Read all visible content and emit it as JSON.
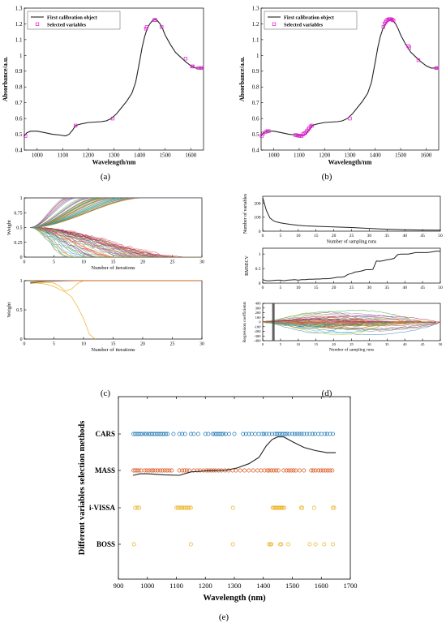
{
  "captions": {
    "a": "(a)",
    "b": "(b)",
    "c": "(c)",
    "d": "(d)",
    "e": "(e)"
  },
  "chart_data": [
    {
      "id": "a",
      "type": "line",
      "xlabel": "Wavelength/nm",
      "ylabel": "Absorbance/a.u.",
      "xlim": [
        950,
        1650
      ],
      "ylim": [
        0.4,
        1.3
      ],
      "xticks": [
        1000,
        1100,
        1200,
        1300,
        1400,
        1500,
        1600
      ],
      "yticks": [
        0.4,
        0.5,
        0.6,
        0.7,
        0.8,
        0.9,
        1.0,
        1.1,
        1.2,
        1.3
      ],
      "ytick_labels": [
        "0.4",
        "0.5",
        "0.6",
        "0.7",
        "0.8",
        "0.9",
        "1",
        "1.1",
        "1.2",
        "1.3"
      ],
      "legend": [
        "First calibration object",
        "Selected variables"
      ],
      "legend_position": "top-left",
      "series": [
        {
          "name": "First calibration object",
          "x": [
            950,
            960,
            975,
            1000,
            1030,
            1060,
            1090,
            1110,
            1125,
            1140,
            1150,
            1170,
            1200,
            1250,
            1270,
            1290,
            1310,
            1330,
            1350,
            1370,
            1385,
            1400,
            1410,
            1420,
            1430,
            1440,
            1450,
            1460,
            1470,
            1480,
            1490,
            1500,
            1520,
            1540,
            1560,
            1580,
            1600,
            1620,
            1640,
            1650
          ],
          "y": [
            0.49,
            0.51,
            0.52,
            0.52,
            0.51,
            0.5,
            0.495,
            0.49,
            0.5,
            0.53,
            0.555,
            0.565,
            0.575,
            0.58,
            0.585,
            0.6,
            0.63,
            0.67,
            0.71,
            0.76,
            0.83,
            0.96,
            1.05,
            1.12,
            1.17,
            1.2,
            1.22,
            1.23,
            1.22,
            1.2,
            1.17,
            1.13,
            1.07,
            1.02,
            0.99,
            0.96,
            0.935,
            0.92,
            0.92,
            0.92
          ]
        },
        {
          "name": "Selected variables",
          "x": [
            954,
            1150,
            1295,
            1425,
            1428,
            1458,
            1462,
            1486,
            1580,
            1605,
            1608,
            1630,
            1640,
            1645
          ],
          "y": [
            0.49,
            0.555,
            0.6,
            1.17,
            1.18,
            1.225,
            1.225,
            1.18,
            0.98,
            0.93,
            0.93,
            0.92,
            0.92,
            0.92
          ]
        }
      ]
    },
    {
      "id": "b",
      "type": "line",
      "xlabel": "Wavelength/nm",
      "ylabel": "Absorbance/a.u.",
      "xlim": [
        950,
        1650
      ],
      "ylim": [
        0.4,
        1.3
      ],
      "xticks": [
        1000,
        1100,
        1200,
        1300,
        1400,
        1500,
        1600
      ],
      "yticks": [
        0.4,
        0.5,
        0.6,
        0.7,
        0.8,
        0.9,
        1.0,
        1.1,
        1.2,
        1.3
      ],
      "ytick_labels": [
        "0.4",
        "0.5",
        "0.6",
        "0.7",
        "0.8",
        "0.9",
        "1",
        "1.1",
        "1.2",
        "1.3"
      ],
      "legend": [
        "First calibration object",
        "Selected variables"
      ],
      "legend_position": "top-left",
      "series": [
        {
          "name": "First calibration object",
          "x": [
            950,
            960,
            975,
            1000,
            1030,
            1060,
            1090,
            1110,
            1125,
            1140,
            1150,
            1170,
            1200,
            1250,
            1270,
            1290,
            1310,
            1330,
            1350,
            1370,
            1385,
            1400,
            1410,
            1420,
            1430,
            1440,
            1450,
            1460,
            1470,
            1480,
            1490,
            1500,
            1520,
            1540,
            1560,
            1580,
            1600,
            1620,
            1640,
            1650
          ],
          "y": [
            0.49,
            0.51,
            0.52,
            0.52,
            0.51,
            0.5,
            0.495,
            0.49,
            0.5,
            0.53,
            0.555,
            0.565,
            0.575,
            0.58,
            0.585,
            0.6,
            0.63,
            0.67,
            0.71,
            0.76,
            0.83,
            0.96,
            1.05,
            1.12,
            1.17,
            1.2,
            1.22,
            1.23,
            1.22,
            1.2,
            1.17,
            1.13,
            1.07,
            1.02,
            0.99,
            0.96,
            0.935,
            0.92,
            0.92,
            0.92
          ]
        },
        {
          "name": "Selected variables",
          "x": [
            952,
            958,
            968,
            975,
            980,
            1085,
            1090,
            1095,
            1100,
            1105,
            1110,
            1115,
            1120,
            1125,
            1130,
            1135,
            1140,
            1145,
            1150,
            1300,
            1432,
            1436,
            1440,
            1444,
            1448,
            1452,
            1456,
            1460,
            1464,
            1468,
            1472,
            1530,
            1534,
            1570,
            1640,
            1644
          ],
          "y": [
            0.49,
            0.505,
            0.515,
            0.52,
            0.52,
            0.495,
            0.494,
            0.492,
            0.49,
            0.49,
            0.49,
            0.5,
            0.505,
            0.51,
            0.52,
            0.53,
            0.54,
            0.55,
            0.555,
            0.6,
            1.18,
            1.2,
            1.21,
            1.22,
            1.225,
            1.228,
            1.23,
            1.23,
            1.228,
            1.225,
            1.222,
            1.06,
            1.05,
            0.97,
            0.92,
            0.92
          ]
        }
      ]
    },
    {
      "id": "c-top",
      "type": "line",
      "description_series": "many variable weight trajectories",
      "xlabel": "Number of iterations",
      "ylabel": "Weight",
      "xlim": [
        0,
        30
      ],
      "ylim": [
        0,
        1
      ],
      "xticks": [
        0,
        5,
        10,
        15,
        20,
        25,
        30
      ],
      "yticks": [
        0,
        0.25,
        0.5,
        0.75,
        1
      ],
      "ytick_labels": [
        "0",
        "0.25",
        "0.5",
        "0.75",
        "1"
      ],
      "start_value": 0.5,
      "trajectory_count": 120,
      "palette": [
        "#1f77b4",
        "#ff7f0e",
        "#2ca02c",
        "#d62728",
        "#9467bd",
        "#8c564b",
        "#e377c2",
        "#7f7f7f",
        "#bcbd22",
        "#17becf",
        "#edb120",
        "#4dbeee",
        "#a2142f",
        "#77ac30",
        "#7e2f8e"
      ]
    },
    {
      "id": "c-bottom",
      "type": "line",
      "xlabel": "Number of iterations",
      "ylabel": "Weight",
      "xlim": [
        0,
        30
      ],
      "ylim": [
        0,
        1
      ],
      "xticks": [
        0,
        5,
        10,
        15,
        20,
        25,
        30
      ],
      "yticks": [
        0,
        0.5,
        1
      ],
      "ytick_labels": [
        "0",
        "0.5",
        "1"
      ],
      "series": [
        {
          "name": "",
          "color": "#edb120",
          "x": [
            1,
            2,
            3,
            4,
            5,
            6,
            7,
            8,
            9,
            10,
            11,
            12
          ],
          "y": [
            0.95,
            0.96,
            0.95,
            0.93,
            0.9,
            0.85,
            0.8,
            0.72,
            0.55,
            0.35,
            0.08,
            0.0
          ]
        },
        {
          "name": "",
          "color": "#edb120",
          "x": [
            1,
            3,
            5,
            6,
            7,
            8,
            9,
            10,
            30
          ],
          "y": [
            0.95,
            0.97,
            0.96,
            0.9,
            0.82,
            0.86,
            0.95,
            1.0,
            1.0
          ]
        },
        {
          "name": "",
          "color": "#4dbeee",
          "x": [
            1,
            3,
            6,
            9,
            11,
            30
          ],
          "y": [
            0.97,
            0.98,
            0.99,
            1.0,
            1.0,
            1.0
          ]
        },
        {
          "name": "",
          "color": "#7e2f8e",
          "x": [
            1,
            4,
            8,
            10,
            30
          ],
          "y": [
            0.96,
            0.99,
            1.0,
            1.0,
            1.0
          ]
        },
        {
          "name": "",
          "color": "#77ac30",
          "x": [
            1,
            5,
            9,
            30
          ],
          "y": [
            0.98,
            1.0,
            1.0,
            1.0
          ]
        },
        {
          "name": "",
          "color": "#d95319",
          "x": [
            1,
            30
          ],
          "y": [
            1.0,
            1.0
          ]
        }
      ]
    },
    {
      "id": "d-top",
      "type": "line",
      "xlabel": "Number of sampling runs",
      "ylabel": "Number of variables",
      "xlim": [
        0,
        50
      ],
      "ylim": [
        0,
        250
      ],
      "xticks": [
        0,
        5,
        10,
        15,
        20,
        25,
        30,
        35,
        40,
        45,
        50
      ],
      "yticks": [
        0,
        100,
        200
      ],
      "series": [
        {
          "name": "",
          "x": [
            0,
            1,
            2,
            3,
            4,
            5,
            6,
            8,
            10,
            12,
            15,
            20,
            25,
            30,
            35,
            40,
            45,
            50
          ],
          "y": [
            240,
            150,
            95,
            75,
            65,
            60,
            55,
            48,
            42,
            38,
            35,
            31,
            26,
            20,
            14,
            10,
            8,
            7
          ]
        }
      ]
    },
    {
      "id": "d-mid",
      "type": "line",
      "xlabel": "",
      "ylabel": "RMSECV",
      "xlim": [
        0,
        50
      ],
      "ylim": [
        0,
        1.2
      ],
      "xticks": [
        0,
        5,
        10,
        15,
        20,
        25,
        30,
        35,
        40,
        45,
        50
      ],
      "yticks": [
        0,
        0.5,
        1
      ],
      "series": [
        {
          "name": "",
          "x": [
            0,
            1,
            2,
            3,
            4,
            5,
            6,
            7,
            8,
            9,
            10,
            11,
            12,
            13,
            14,
            15,
            16,
            17,
            18,
            19,
            20,
            21,
            22,
            23,
            24,
            25,
            26,
            27,
            28,
            29,
            30,
            31,
            32,
            33,
            34,
            35,
            36,
            37,
            38,
            39,
            40,
            41,
            42,
            43,
            44,
            45,
            46,
            47,
            48,
            49,
            50
          ],
          "y": [
            0.12,
            0.08,
            0.08,
            0.09,
            0.1,
            0.1,
            0.08,
            0.1,
            0.11,
            0.12,
            0.1,
            0.12,
            0.12,
            0.13,
            0.13,
            0.14,
            0.14,
            0.15,
            0.15,
            0.16,
            0.18,
            0.2,
            0.2,
            0.22,
            0.3,
            0.33,
            0.38,
            0.4,
            0.42,
            0.46,
            0.46,
            0.47,
            0.76,
            0.75,
            0.77,
            0.8,
            0.82,
            0.85,
            0.98,
            1.0,
            1.0,
            1.0,
            1.02,
            1.05,
            1.05,
            1.05,
            1.05,
            1.06,
            1.08,
            1.1,
            1.1
          ]
        }
      ]
    },
    {
      "id": "d-bottom",
      "type": "line",
      "description_series": "many regression coefficient paths",
      "xlabel": "Number of sampling runs",
      "ylabel": "Regression coefficients",
      "xlim": [
        0,
        50
      ],
      "ylim": [
        -400,
        400
      ],
      "xticks": [
        0,
        5,
        10,
        15,
        20,
        25,
        30,
        35,
        40,
        45,
        50
      ],
      "yticks": [
        -400,
        -300,
        -200,
        -100,
        0,
        100,
        200,
        300,
        400
      ],
      "optimal_run_marker": 3,
      "path_count": 60,
      "palette": [
        "#1f77b4",
        "#ff7f0e",
        "#2ca02c",
        "#d62728",
        "#9467bd",
        "#8c564b",
        "#e377c2",
        "#7f7f7f",
        "#bcbd22",
        "#17becf",
        "#edb120",
        "#a2142f"
      ]
    },
    {
      "id": "e",
      "type": "scatter",
      "xlabel": "Wavelength (nm)",
      "ylabel": "Different variables selection methods",
      "xlim": [
        900,
        1700
      ],
      "xticks": [
        900,
        1000,
        1100,
        1200,
        1300,
        1400,
        1500,
        1600,
        1700
      ],
      "categories": [
        "CARS",
        "MASS",
        "i-VISSA",
        "BOSS"
      ],
      "series": [
        {
          "name": "CARS",
          "color": "#1f77b4",
          "x": [
            952,
            958,
            964,
            970,
            976,
            982,
            990,
            996,
            1004,
            1010,
            1016,
            1022,
            1028,
            1034,
            1040,
            1046,
            1052,
            1058,
            1064,
            1070,
            1090,
            1110,
            1120,
            1130,
            1150,
            1160,
            1175,
            1200,
            1210,
            1225,
            1232,
            1238,
            1244,
            1250,
            1256,
            1262,
            1270,
            1282,
            1300,
            1330,
            1340,
            1350,
            1360,
            1372,
            1384,
            1396,
            1402,
            1410,
            1420,
            1430,
            1440,
            1446,
            1452,
            1458,
            1464,
            1470,
            1476,
            1482,
            1490,
            1500,
            1508,
            1516,
            1524,
            1532,
            1540,
            1550,
            1560,
            1570,
            1578,
            1590,
            1600,
            1612,
            1620,
            1630,
            1640
          ]
        },
        {
          "name": "MASS",
          "color": "#d95319",
          "x": [
            952,
            958,
            964,
            970,
            978,
            990,
            998,
            1006,
            1014,
            1020,
            1028,
            1036,
            1044,
            1052,
            1060,
            1068,
            1076,
            1084,
            1110,
            1120,
            1128,
            1136,
            1145,
            1160,
            1172,
            1182,
            1194,
            1204,
            1212,
            1220,
            1228,
            1236,
            1246,
            1256,
            1268,
            1280,
            1294,
            1305,
            1320,
            1335,
            1350,
            1365,
            1380,
            1392,
            1404,
            1414,
            1420,
            1428,
            1436,
            1444,
            1452,
            1470,
            1480,
            1488,
            1496,
            1504,
            1512,
            1525,
            1540,
            1565,
            1572,
            1580,
            1590,
            1598,
            1606,
            1614,
            1622,
            1630,
            1638
          ]
        },
        {
          "name": "i-VISSA",
          "color": "#edb120",
          "x": [
            958,
            965,
            972,
            1100,
            1105,
            1110,
            1115,
            1120,
            1125,
            1130,
            1135,
            1140,
            1145,
            1150,
            1295,
            1432,
            1436,
            1440,
            1444,
            1448,
            1452,
            1456,
            1460,
            1464,
            1468,
            1472,
            1530,
            1534,
            1575,
            1640,
            1644
          ]
        },
        {
          "name": "BOSS",
          "color": "#edb120",
          "x": [
            954,
            1150,
            1295,
            1420,
            1424,
            1428,
            1458,
            1462,
            1486,
            1560,
            1580,
            1610,
            1640
          ]
        }
      ],
      "overlay_curve": {
        "name": "",
        "x": [
          950,
          975,
          1000,
          1060,
          1110,
          1150,
          1200,
          1270,
          1310,
          1350,
          1385,
          1410,
          1430,
          1450,
          1470,
          1500,
          1540,
          1580,
          1620,
          1650
        ],
        "y": [
          0.49,
          0.52,
          0.52,
          0.5,
          0.49,
          0.555,
          0.575,
          0.585,
          0.63,
          0.71,
          0.83,
          1.05,
          1.17,
          1.22,
          1.22,
          1.13,
          1.02,
          0.96,
          0.92,
          0.92
        ]
      }
    }
  ]
}
